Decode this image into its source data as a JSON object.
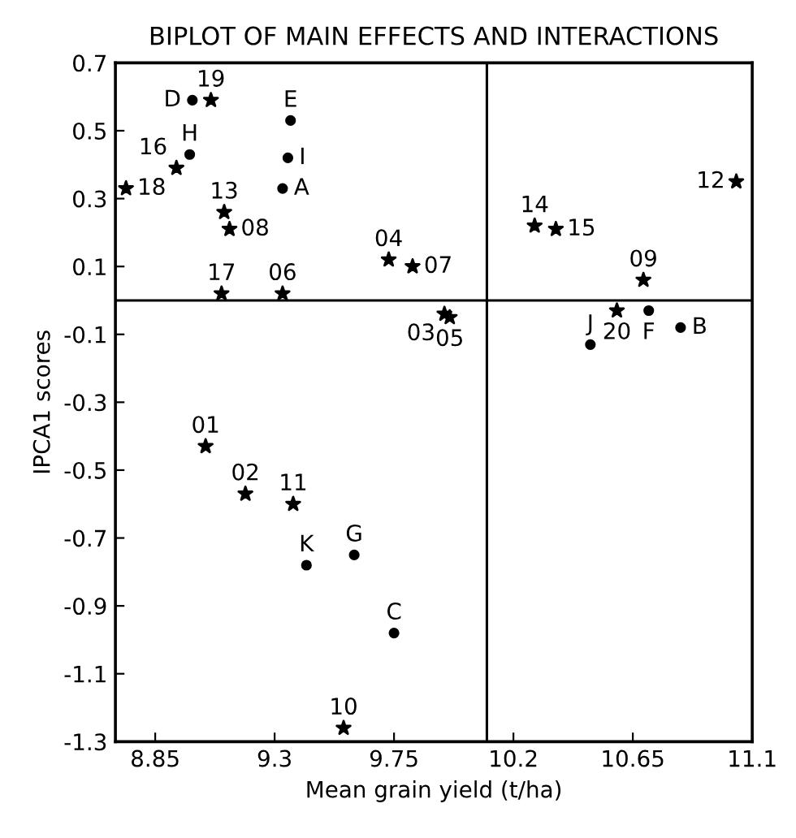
{
  "chart_data": {
    "type": "scatter",
    "title": "BIPLOT OF MAIN EFFECTS AND INTERACTIONS",
    "xlabel": "Mean grain yield (t/ha)",
    "ylabel": "IPCA1 scores",
    "xlim": [
      8.7,
      11.1
    ],
    "xticks": [
      8.85,
      9.3,
      9.75,
      10.2,
      10.65,
      11.1
    ],
    "ylim": [
      -1.3,
      0.7
    ],
    "yticks": [
      {
        "value": -1.3,
        "label": "-1.3"
      },
      {
        "value": -1.1,
        "label": "-1.1"
      },
      {
        "value": -0.9,
        "label": "-0.9"
      },
      {
        "value": -0.7,
        "label": "-0.7"
      },
      {
        "value": -0.5,
        "label": "-0.5"
      },
      {
        "value": -0.3,
        "label": "-0.3"
      },
      {
        "value": -0.1,
        "label": "-0.1"
      },
      0.1,
      0.3,
      0.5,
      0.7
    ],
    "grid": false,
    "legend": false,
    "series": [
      {
        "color": "#000000",
        "marker": "star",
        "x": [
          8.74,
          8.93,
          9.06,
          9.11,
          9.13,
          9.1,
          9.33,
          9.73,
          9.82,
          9.94,
          9.96,
          10.28,
          10.36,
          11.04,
          10.69,
          10.59,
          9.04,
          9.19,
          9.37,
          9.56
        ],
        "values": [
          0.33,
          0.39,
          0.59,
          0.26,
          0.21,
          0.02,
          0.02,
          0.12,
          0.1,
          -0.04,
          -0.05,
          0.22,
          0.21,
          0.35,
          0.06,
          -0.03,
          -0.43,
          -0.57,
          -0.6,
          -1.26
        ]
      },
      {
        "color": "#000000",
        "marker": "circle",
        "x": [
          8.99,
          8.98,
          9.36,
          9.35,
          9.33,
          10.71,
          10.83,
          10.49,
          9.42,
          9.6,
          9.75
        ],
        "values": [
          0.59,
          0.43,
          0.53,
          0.42,
          0.33,
          -0.03,
          -0.08,
          -0.13,
          -0.78,
          -0.75,
          -0.98
        ]
      }
    ],
    "ref_lines": [
      {
        "axis": "x",
        "value": 10.1,
        "color": "#000000"
      },
      {
        "axis": "y",
        "value": 0,
        "color": "#000000"
      }
    ],
    "annotations": [
      {
        "text": "18",
        "x": 8.74,
        "y": 0.33
      },
      {
        "text": "16",
        "x": 8.93,
        "y": 0.39
      },
      {
        "text": "19",
        "x": 9.06,
        "y": 0.59
      },
      {
        "text": "13",
        "x": 9.11,
        "y": 0.26
      },
      {
        "text": "08",
        "x": 9.13,
        "y": 0.21
      },
      {
        "text": "17",
        "x": 9.1,
        "y": 0.02
      },
      {
        "text": "06",
        "x": 9.33,
        "y": 0.02
      },
      {
        "text": "04",
        "x": 9.73,
        "y": 0.12
      },
      {
        "text": "07",
        "x": 9.82,
        "y": 0.1
      },
      {
        "text": "03",
        "x": 9.94,
        "y": -0.04
      },
      {
        "text": "05",
        "x": 9.96,
        "y": -0.05
      },
      {
        "text": "14",
        "x": 10.28,
        "y": 0.22
      },
      {
        "text": "15",
        "x": 10.36,
        "y": 0.21
      },
      {
        "text": "12",
        "x": 11.04,
        "y": 0.35
      },
      {
        "text": "09",
        "x": 10.69,
        "y": 0.06
      },
      {
        "text": "20",
        "x": 10.59,
        "y": -0.03
      },
      {
        "text": "01",
        "x": 9.04,
        "y": -0.43
      },
      {
        "text": "02",
        "x": 9.19,
        "y": -0.57
      },
      {
        "text": "11",
        "x": 9.37,
        "y": -0.6
      },
      {
        "text": "10",
        "x": 9.56,
        "y": -1.26
      },
      {
        "text": "D",
        "x": 8.99,
        "y": 0.59
      },
      {
        "text": "H",
        "x": 8.98,
        "y": 0.43
      },
      {
        "text": "E",
        "x": 9.36,
        "y": 0.53
      },
      {
        "text": "I",
        "x": 9.35,
        "y": 0.42
      },
      {
        "text": "A",
        "x": 9.33,
        "y": 0.33
      },
      {
        "text": "F",
        "x": 10.71,
        "y": -0.03
      },
      {
        "text": "B",
        "x": 10.83,
        "y": -0.08
      },
      {
        "text": "J",
        "x": 10.49,
        "y": -0.13
      },
      {
        "text": "K",
        "x": 9.42,
        "y": -0.78
      },
      {
        "text": "G",
        "x": 9.6,
        "y": -0.75
      },
      {
        "text": "C",
        "x": 9.75,
        "y": -0.98
      }
    ]
  }
}
